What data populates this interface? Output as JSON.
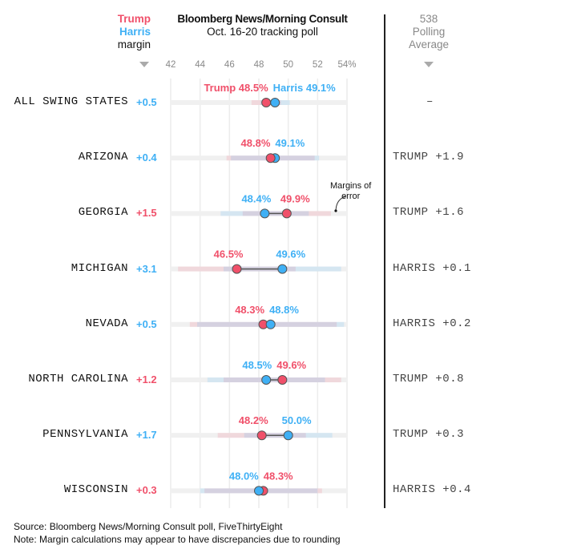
{
  "legend": {
    "trump": "Trump",
    "harris": "Harris",
    "margin": "margin"
  },
  "header": {
    "title": "Bloomberg News/Morning Consult",
    "subtitle": "Oct. 16-20 tracking poll"
  },
  "avg_header": {
    "line1": "538",
    "line2": "Polling",
    "line3": "Average"
  },
  "colors": {
    "trump": "#f0506a",
    "harris": "#3fb0f5"
  },
  "annotation": {
    "line1": "Margins of",
    "line2": "error"
  },
  "chart_data": {
    "type": "dot-plot",
    "xlim": [
      42,
      54
    ],
    "ticks": [
      "42",
      "44",
      "46",
      "48",
      "50",
      "52",
      "54%"
    ],
    "tick_values": [
      42,
      44,
      46,
      48,
      50,
      52,
      54
    ],
    "grid": true,
    "rows": [
      {
        "state": "ALL SWING STATES",
        "trump": 48.5,
        "harris": 49.1,
        "trump_label": "Trump 48.5%",
        "harris_label": "Harris 49.1%",
        "margin": "+0.5",
        "margin_party": "harris",
        "moe": 1,
        "avg": "–"
      },
      {
        "state": "ARIZONA",
        "trump": 48.8,
        "harris": 49.1,
        "trump_label": "48.8%",
        "harris_label": "49.1%",
        "margin": "+0.4",
        "margin_party": "harris",
        "moe": 3,
        "avg": "TRUMP +1.9"
      },
      {
        "state": "GEORGIA",
        "trump": 49.9,
        "harris": 48.4,
        "trump_label": "49.9%",
        "harris_label": "48.4%",
        "margin": "+1.5",
        "margin_party": "trump",
        "moe": 3,
        "avg": "TRUMP +1.6"
      },
      {
        "state": "MICHIGAN",
        "trump": 46.5,
        "harris": 49.6,
        "trump_label": "46.5%",
        "harris_label": "49.6%",
        "margin": "+3.1",
        "margin_party": "harris",
        "moe": 4,
        "avg": "HARRIS +0.1"
      },
      {
        "state": "NEVADA",
        "trump": 48.3,
        "harris": 48.8,
        "trump_label": "48.3%",
        "harris_label": "48.8%",
        "margin": "+0.5",
        "margin_party": "harris",
        "moe": 5,
        "avg": "HARRIS +0.2"
      },
      {
        "state": "NORTH CAROLINA",
        "trump": 49.6,
        "harris": 48.5,
        "trump_label": "49.6%",
        "harris_label": "48.5%",
        "margin": "+1.2",
        "margin_party": "trump",
        "moe": 4,
        "avg": "TRUMP +0.8"
      },
      {
        "state": "PENNSYLVANIA",
        "trump": 48.2,
        "harris": 50.0,
        "trump_label": "48.2%",
        "harris_label": "50.0%",
        "margin": "+1.7",
        "margin_party": "harris",
        "moe": 3,
        "avg": "TRUMP +0.3"
      },
      {
        "state": "WISCONSIN",
        "trump": 48.3,
        "harris": 48.0,
        "trump_label": "48.3%",
        "harris_label": "48.0%",
        "margin": "+0.3",
        "margin_party": "trump",
        "moe": 4,
        "avg": "HARRIS +0.4"
      }
    ]
  },
  "footer": {
    "source": "Source: Bloomberg News/Morning Consult poll, FiveThirtyEight",
    "note": "Note: Margin calculations may appear to have discrepancies due to rounding"
  }
}
